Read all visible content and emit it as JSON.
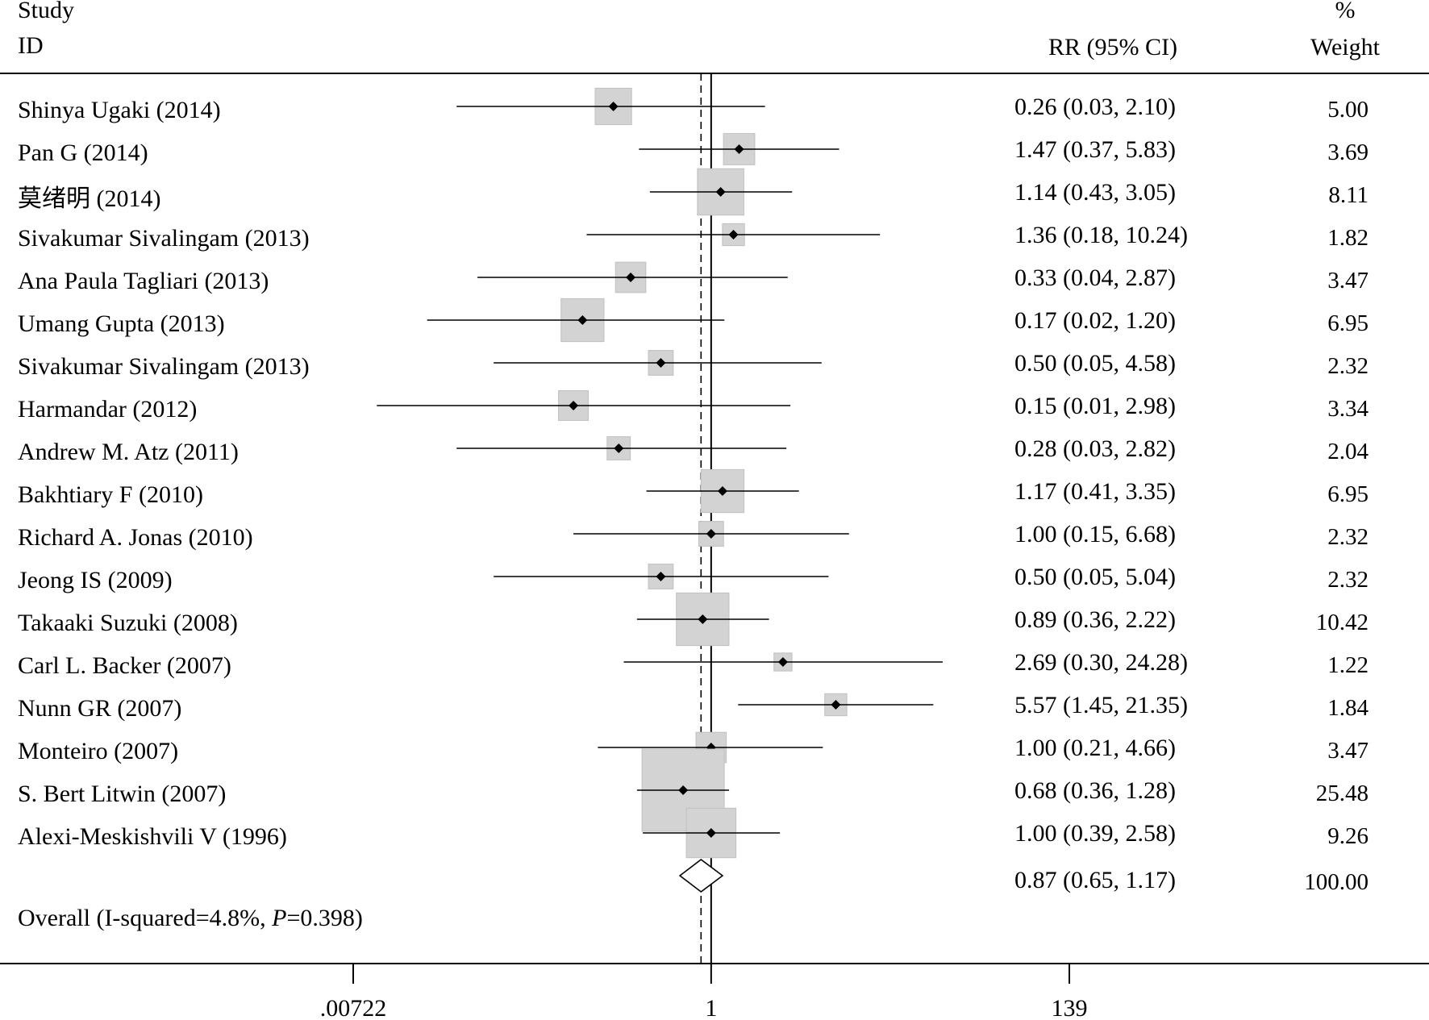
{
  "chart_data": {
    "type": "forest",
    "header": {
      "study_line1": "Study",
      "study_line2": "ID",
      "rr_label": "RR (95% CI)",
      "weight_line1": "%",
      "weight_line2": "Weight"
    },
    "studies": [
      {
        "label": "Shinya Ugaki (2014)",
        "rr": 0.26,
        "lo": 0.03,
        "hi": 2.1,
        "weight": 5.0,
        "rr_text": "0.26 (0.03, 2.10)",
        "weight_text": "5.00"
      },
      {
        "label": "Pan G (2014)",
        "rr": 1.47,
        "lo": 0.37,
        "hi": 5.83,
        "weight": 3.69,
        "rr_text": "1.47 (0.37, 5.83)",
        "weight_text": "3.69"
      },
      {
        "label": "莫绪明 (2014)",
        "rr": 1.14,
        "lo": 0.43,
        "hi": 3.05,
        "weight": 8.11,
        "rr_text": "1.14 (0.43, 3.05)",
        "weight_text": "8.11"
      },
      {
        "label": "Sivakumar Sivalingam (2013)",
        "rr": 1.36,
        "lo": 0.18,
        "hi": 10.24,
        "weight": 1.82,
        "rr_text": "1.36 (0.18, 10.24)",
        "weight_text": "1.82"
      },
      {
        "label": "Ana Paula Tagliari (2013)",
        "rr": 0.33,
        "lo": 0.04,
        "hi": 2.87,
        "weight": 3.47,
        "rr_text": "0.33 (0.04, 2.87)",
        "weight_text": "3.47"
      },
      {
        "label": "Umang Gupta (2013)",
        "rr": 0.17,
        "lo": 0.02,
        "hi": 1.2,
        "weight": 6.95,
        "rr_text": "0.17 (0.02, 1.20)",
        "weight_text": "6.95"
      },
      {
        "label": "Sivakumar Sivalingam (2013)",
        "rr": 0.5,
        "lo": 0.05,
        "hi": 4.58,
        "weight": 2.32,
        "rr_text": "0.50 (0.05, 4.58)",
        "weight_text": "2.32"
      },
      {
        "label": "Harmandar (2012)",
        "rr": 0.15,
        "lo": 0.01,
        "hi": 2.98,
        "weight": 3.34,
        "rr_text": "0.15 (0.01, 2.98)",
        "weight_text": "3.34"
      },
      {
        "label": "Andrew M. Atz (2011)",
        "rr": 0.28,
        "lo": 0.03,
        "hi": 2.82,
        "weight": 2.04,
        "rr_text": "0.28 (0.03, 2.82)",
        "weight_text": "2.04"
      },
      {
        "label": "Bakhtiary F (2010)",
        "rr": 1.17,
        "lo": 0.41,
        "hi": 3.35,
        "weight": 6.95,
        "rr_text": "1.17 (0.41, 3.35)",
        "weight_text": "6.95"
      },
      {
        "label": "Richard A. Jonas (2010)",
        "rr": 1.0,
        "lo": 0.15,
        "hi": 6.68,
        "weight": 2.32,
        "rr_text": "1.00 (0.15, 6.68)",
        "weight_text": "2.32"
      },
      {
        "label": "Jeong IS (2009)",
        "rr": 0.5,
        "lo": 0.05,
        "hi": 5.04,
        "weight": 2.32,
        "rr_text": "0.50 (0.05, 5.04)",
        "weight_text": "2.32"
      },
      {
        "label": "Takaaki Suzuki (2008)",
        "rr": 0.89,
        "lo": 0.36,
        "hi": 2.22,
        "weight": 10.42,
        "rr_text": "0.89 (0.36, 2.22)",
        "weight_text": "10.42"
      },
      {
        "label": "Carl L. Backer (2007)",
        "rr": 2.69,
        "lo": 0.3,
        "hi": 24.28,
        "weight": 1.22,
        "rr_text": "2.69 (0.30, 24.28)",
        "weight_text": "1.22"
      },
      {
        "label": "Nunn GR (2007)",
        "rr": 5.57,
        "lo": 1.45,
        "hi": 21.35,
        "weight": 1.84,
        "rr_text": "5.57 (1.45, 21.35)",
        "weight_text": "1.84"
      },
      {
        "label": "Monteiro (2007)",
        "rr": 1.0,
        "lo": 0.21,
        "hi": 4.66,
        "weight": 3.47,
        "rr_text": "1.00 (0.21, 4.66)",
        "weight_text": "3.47"
      },
      {
        "label": "S. Bert Litwin (2007)",
        "rr": 0.68,
        "lo": 0.36,
        "hi": 1.28,
        "weight": 25.48,
        "rr_text": "0.68 (0.36, 1.28)",
        "weight_text": "25.48"
      },
      {
        "label": "Alexi-Meskishvili V (1996)",
        "rr": 1.0,
        "lo": 0.39,
        "hi": 2.58,
        "weight": 9.26,
        "rr_text": "1.00 (0.39, 2.58)",
        "weight_text": "9.26"
      }
    ],
    "overall": {
      "label_prefix": "Overall (I-squared=4.8%, ",
      "label_p": "P",
      "label_suffix": "=0.398)",
      "rr": 0.87,
      "lo": 0.65,
      "hi": 1.17,
      "weight": 100.0,
      "rr_text": "0.87 (0.65, 1.17)",
      "weight_text": "100.00"
    },
    "x_axis": {
      "scale": "log",
      "range": [
        0.00722,
        139
      ],
      "ticks": [
        0.00722,
        1,
        139
      ],
      "tick_labels": [
        ".00722",
        "1",
        "139"
      ]
    },
    "null_line": 1,
    "colors": {
      "box": "#d3d3d3",
      "box_stroke": "#c0c0c0",
      "line": "#000000"
    }
  }
}
